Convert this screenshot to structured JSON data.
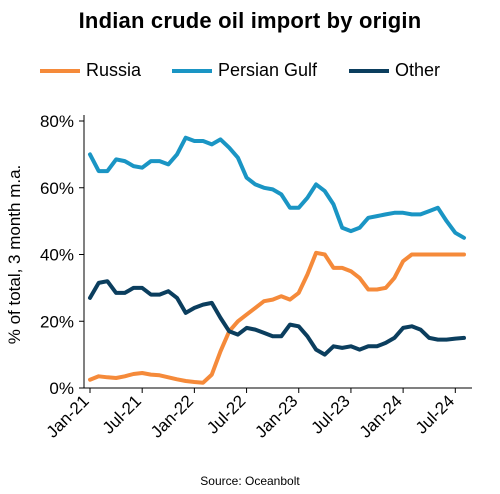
{
  "chart_data": {
    "type": "line",
    "title": "Indian crude oil import by origin",
    "ylabel": "% of total, 3 month m.a.",
    "xlabel": "",
    "source": "Source: Oceanbolt",
    "ylim": [
      0,
      80
    ],
    "yticks": [
      "0%",
      "20%",
      "40%",
      "60%",
      "80%"
    ],
    "ytick_values": [
      0,
      20,
      40,
      60,
      80
    ],
    "xticks": [
      "Jan-21",
      "Jul-21",
      "Jan-22",
      "Jul-22",
      "Jan-23",
      "Jul-23",
      "Jan-24",
      "Jul-24"
    ],
    "xtick_index": [
      0,
      6,
      12,
      18,
      24,
      30,
      36,
      42
    ],
    "x": [
      "Jan-21",
      "Feb-21",
      "Mar-21",
      "Apr-21",
      "May-21",
      "Jun-21",
      "Jul-21",
      "Aug-21",
      "Sep-21",
      "Oct-21",
      "Nov-21",
      "Dec-21",
      "Jan-22",
      "Feb-22",
      "Mar-22",
      "Apr-22",
      "May-22",
      "Jun-22",
      "Jul-22",
      "Aug-22",
      "Sep-22",
      "Oct-22",
      "Nov-22",
      "Dec-22",
      "Jan-23",
      "Feb-23",
      "Mar-23",
      "Apr-23",
      "May-23",
      "Jun-23",
      "Jul-23",
      "Aug-23",
      "Sep-23",
      "Oct-23",
      "Nov-23",
      "Dec-23",
      "Jan-24",
      "Feb-24",
      "Mar-24",
      "Apr-24",
      "May-24",
      "Jun-24",
      "Jul-24",
      "Aug-24"
    ],
    "legend_position": "top",
    "grid": false,
    "series": [
      {
        "name": "Russia",
        "color": "#F58A3A",
        "values": [
          2.5,
          3.5,
          3.2,
          3.0,
          3.5,
          4.2,
          4.5,
          4.0,
          3.8,
          3.2,
          2.6,
          2.1,
          1.8,
          1.6,
          4.0,
          11,
          17,
          20,
          22,
          24,
          26,
          26.5,
          27.5,
          26.5,
          28.5,
          34,
          40.5,
          40,
          36,
          36,
          35,
          33,
          29.5,
          29.5,
          30,
          33,
          38,
          40,
          40,
          40,
          40,
          40,
          40,
          40
        ]
      },
      {
        "name": "Persian Gulf",
        "color": "#1A95C4",
        "values": [
          70,
          65,
          65,
          68.5,
          68,
          66.5,
          66,
          68,
          68,
          67,
          70,
          75,
          74,
          74,
          73,
          74.5,
          72,
          69,
          63,
          61,
          60,
          59.5,
          58,
          54,
          54,
          57,
          61,
          59,
          55,
          48,
          47,
          48,
          51,
          51.5,
          52,
          52.5,
          52.5,
          52,
          52,
          53,
          54,
          50,
          46.5,
          45
        ]
      },
      {
        "name": "Other",
        "color": "#0B3E5E",
        "values": [
          27,
          31.5,
          32,
          28.5,
          28.5,
          30,
          30,
          28,
          28,
          29,
          27,
          22.5,
          24,
          25,
          25.5,
          21,
          17,
          16,
          18,
          17.5,
          16.5,
          15.5,
          15.5,
          19,
          18.5,
          15.5,
          11.5,
          10,
          12.5,
          12,
          12.5,
          11.5,
          12.5,
          12.5,
          13.5,
          15,
          18,
          18.5,
          17.5,
          15,
          14.5,
          14.5,
          14.8,
          15
        ]
      }
    ]
  }
}
